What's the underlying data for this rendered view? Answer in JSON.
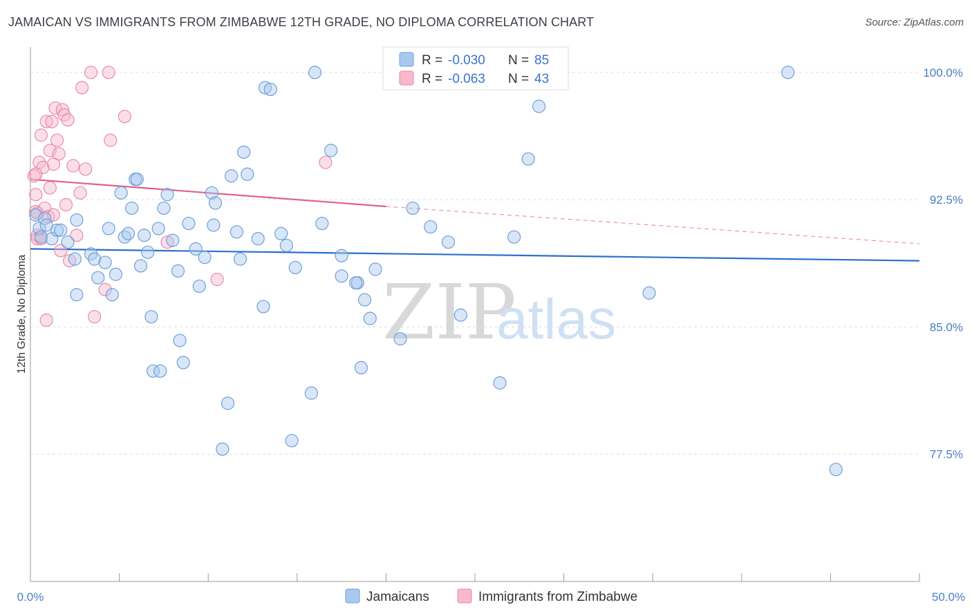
{
  "header": {
    "title": "JAMAICAN VS IMMIGRANTS FROM ZIMBABWE 12TH GRADE, NO DIPLOMA CORRELATION CHART",
    "source": "Source: ZipAtlas.com"
  },
  "watermark": {
    "zip": "ZIP",
    "atlas": "atlas"
  },
  "legend": {
    "rows": [
      {
        "r_label": "R =",
        "r_value": "-0.030",
        "n_label": "N =",
        "n_value": "85"
      },
      {
        "r_label": "R =",
        "r_value": "-0.063",
        "n_label": "N =",
        "n_value": "43"
      }
    ]
  },
  "bottom_legend": {
    "jamaicans": "Jamaicans",
    "zimbabwe": "Immigrants from Zimbabwe"
  },
  "colors": {
    "blue_fill": "#a9c8ee",
    "blue_stroke": "#6f9fd8",
    "blue_line": "#2b6fcb",
    "pink_fill": "#f7b8cb",
    "pink_stroke": "#e98aa8",
    "pink_line": "#e0608a",
    "grid": "#dddddd",
    "tick_label": "#4a7cc4"
  },
  "chart_data": {
    "type": "scatter",
    "ylabel": "12th Grade, No Diploma",
    "xlim": [
      0,
      50
    ],
    "ylim": [
      70,
      101.5
    ],
    "x_tick_labels": [
      "0.0%",
      "50.0%"
    ],
    "y_ticks": [
      {
        "value": 77.5,
        "label": "77.5%"
      },
      {
        "value": 85.0,
        "label": "85.0%"
      },
      {
        "value": 92.5,
        "label": "92.5%"
      },
      {
        "value": 100.0,
        "label": "100.0%"
      }
    ],
    "series": [
      {
        "name": "Jamaicans",
        "r": -0.03,
        "n": 85,
        "trend": {
          "x": [
            0,
            50
          ],
          "y": [
            89.6,
            88.9
          ]
        },
        "points": [
          [
            0.3,
            91.6
          ],
          [
            0.5,
            90.8
          ],
          [
            0.6,
            90.3
          ],
          [
            0.8,
            91.4
          ],
          [
            0.9,
            91.0
          ],
          [
            1.2,
            90.2
          ],
          [
            1.5,
            90.7
          ],
          [
            1.7,
            90.7
          ],
          [
            2.1,
            90.0
          ],
          [
            2.6,
            91.3
          ],
          [
            2.5,
            89.0
          ],
          [
            2.6,
            86.9
          ],
          [
            3.4,
            89.3
          ],
          [
            3.6,
            89.0
          ],
          [
            3.8,
            87.9
          ],
          [
            4.2,
            88.8
          ],
          [
            4.4,
            90.8
          ],
          [
            4.6,
            86.9
          ],
          [
            4.8,
            88.1
          ],
          [
            5.1,
            92.9
          ],
          [
            5.3,
            90.3
          ],
          [
            5.5,
            90.5
          ],
          [
            5.7,
            92.0
          ],
          [
            5.9,
            93.7
          ],
          [
            6.0,
            93.7
          ],
          [
            6.2,
            88.6
          ],
          [
            6.4,
            90.4
          ],
          [
            6.6,
            89.4
          ],
          [
            6.8,
            85.6
          ],
          [
            6.9,
            82.4
          ],
          [
            7.3,
            82.4
          ],
          [
            7.2,
            90.8
          ],
          [
            7.5,
            92.0
          ],
          [
            7.7,
            92.8
          ],
          [
            8.0,
            90.1
          ],
          [
            8.3,
            88.3
          ],
          [
            8.4,
            84.2
          ],
          [
            8.6,
            82.9
          ],
          [
            8.9,
            91.1
          ],
          [
            9.3,
            89.6
          ],
          [
            9.5,
            87.4
          ],
          [
            9.8,
            89.1
          ],
          [
            10.2,
            92.9
          ],
          [
            10.4,
            92.3
          ],
          [
            10.8,
            77.8
          ],
          [
            11.1,
            80.5
          ],
          [
            11.3,
            93.9
          ],
          [
            11.6,
            90.6
          ],
          [
            11.8,
            89.0
          ],
          [
            12.0,
            95.3
          ],
          [
            12.2,
            94.0
          ],
          [
            12.8,
            90.2
          ],
          [
            13.1,
            86.2
          ],
          [
            13.2,
            99.1
          ],
          [
            13.5,
            99.0
          ],
          [
            14.1,
            90.5
          ],
          [
            14.4,
            89.8
          ],
          [
            14.7,
            78.3
          ],
          [
            14.9,
            88.5
          ],
          [
            15.8,
            81.1
          ],
          [
            16.0,
            100.0
          ],
          [
            16.4,
            91.1
          ],
          [
            16.9,
            95.4
          ],
          [
            17.5,
            89.2
          ],
          [
            17.5,
            88.0
          ],
          [
            18.4,
            87.6
          ],
          [
            18.3,
            87.6
          ],
          [
            18.8,
            86.6
          ],
          [
            19.1,
            85.5
          ],
          [
            19.4,
            88.4
          ],
          [
            20.8,
            84.3
          ],
          [
            18.6,
            82.6
          ],
          [
            22.5,
            90.9
          ],
          [
            23.5,
            90.0
          ],
          [
            24.2,
            85.7
          ],
          [
            26.4,
            81.7
          ],
          [
            27.0,
            100.0
          ],
          [
            27.2,
            90.3
          ],
          [
            28.0,
            94.9
          ],
          [
            28.6,
            98.0
          ],
          [
            34.8,
            87.0
          ],
          [
            42.6,
            100.0
          ],
          [
            45.3,
            76.6
          ],
          [
            21.5,
            92.0
          ],
          [
            10.3,
            91.0
          ]
        ]
      },
      {
        "name": "Immigrants from Zimbabwe",
        "r": -0.063,
        "n": 43,
        "trend": {
          "x": [
            0,
            20
          ],
          "y": [
            93.7,
            92.1
          ]
        },
        "trend_extension": {
          "x": [
            20,
            50
          ],
          "y": [
            92.1,
            89.9
          ]
        },
        "points": [
          [
            0.2,
            93.9
          ],
          [
            0.3,
            92.8
          ],
          [
            0.3,
            91.8
          ],
          [
            0.4,
            90.4
          ],
          [
            0.4,
            90.2
          ],
          [
            0.5,
            94.7
          ],
          [
            0.6,
            96.3
          ],
          [
            0.7,
            94.4
          ],
          [
            0.8,
            92.0
          ],
          [
            0.9,
            97.1
          ],
          [
            1.0,
            91.5
          ],
          [
            1.1,
            93.2
          ],
          [
            1.1,
            95.4
          ],
          [
            1.2,
            97.1
          ],
          [
            1.3,
            94.6
          ],
          [
            1.4,
            97.9
          ],
          [
            1.5,
            96.0
          ],
          [
            1.6,
            95.2
          ],
          [
            1.7,
            89.5
          ],
          [
            1.8,
            97.8
          ],
          [
            1.9,
            97.5
          ],
          [
            2.0,
            92.2
          ],
          [
            2.1,
            97.2
          ],
          [
            2.2,
            88.9
          ],
          [
            2.4,
            94.5
          ],
          [
            2.6,
            90.4
          ],
          [
            2.8,
            92.9
          ],
          [
            2.9,
            99.1
          ],
          [
            3.1,
            94.3
          ],
          [
            3.4,
            100.0
          ],
          [
            3.6,
            85.6
          ],
          [
            4.2,
            87.2
          ],
          [
            4.4,
            100.0
          ],
          [
            4.5,
            96.0
          ],
          [
            5.3,
            97.4
          ],
          [
            7.7,
            90.0
          ],
          [
            10.5,
            87.8
          ],
          [
            16.6,
            94.7
          ],
          [
            0.6,
            90.2
          ],
          [
            0.9,
            85.4
          ],
          [
            0.3,
            94.0
          ],
          [
            1.3,
            91.6
          ],
          [
            0.4,
            91.7
          ]
        ]
      }
    ],
    "legend_position": "top-center",
    "grid": true
  }
}
